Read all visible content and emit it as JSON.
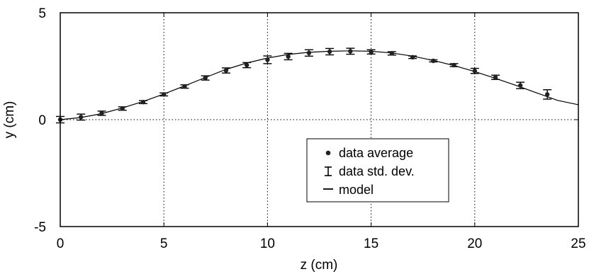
{
  "chart_data": {
    "type": "scatter",
    "xlabel": "z (cm)",
    "ylabel": "y (cm)",
    "xlim": [
      0,
      25
    ],
    "ylim": [
      -5,
      5
    ],
    "x_ticks": [
      "0",
      "5",
      "10",
      "15",
      "20",
      "25"
    ],
    "y_ticks": [
      "5",
      "0",
      "-5"
    ],
    "grid": "vertical dotted at x ticks; dotted horizontal line at y = 0",
    "legend_position": "lower-right-center",
    "legend": [
      "data average",
      "data std. dev.",
      "model"
    ],
    "series": [
      {
        "name": "data average",
        "kind": "points",
        "x": [
          0,
          1,
          2,
          3,
          4,
          5,
          6,
          7,
          8,
          9,
          10,
          11,
          12,
          13,
          14,
          15,
          16,
          17,
          18,
          19,
          20,
          21,
          22.2,
          23.5
        ],
        "y": [
          0.0,
          0.12,
          0.3,
          0.52,
          0.82,
          1.18,
          1.55,
          1.95,
          2.3,
          2.55,
          2.8,
          2.95,
          3.12,
          3.18,
          3.2,
          3.17,
          3.1,
          2.92,
          2.75,
          2.55,
          2.28,
          1.98,
          1.6,
          1.18
        ]
      },
      {
        "name": "data std. dev.",
        "kind": "errorbars",
        "x": [
          0,
          1,
          2,
          3,
          4,
          5,
          6,
          7,
          8,
          9,
          10,
          11,
          12,
          13,
          14,
          15,
          16,
          17,
          18,
          19,
          20,
          21,
          22.2,
          23.5
        ],
        "err": [
          0.15,
          0.14,
          0.1,
          0.08,
          0.07,
          0.07,
          0.08,
          0.1,
          0.12,
          0.12,
          0.18,
          0.15,
          0.15,
          0.15,
          0.14,
          0.1,
          0.08,
          0.06,
          0.05,
          0.07,
          0.12,
          0.1,
          0.15,
          0.22
        ]
      },
      {
        "name": "model",
        "kind": "line",
        "x": [
          0,
          1,
          2,
          3,
          4,
          5,
          6,
          7,
          8,
          9,
          10,
          11,
          12,
          13,
          14,
          15,
          16,
          17,
          18,
          19,
          20,
          21,
          22,
          23,
          24,
          25
        ],
        "y": [
          0.0,
          0.1,
          0.28,
          0.55,
          0.85,
          1.2,
          1.58,
          1.97,
          2.35,
          2.65,
          2.88,
          3.05,
          3.15,
          3.2,
          3.22,
          3.2,
          3.12,
          2.97,
          2.77,
          2.53,
          2.25,
          1.93,
          1.6,
          1.25,
          0.9,
          0.7
        ]
      }
    ]
  }
}
